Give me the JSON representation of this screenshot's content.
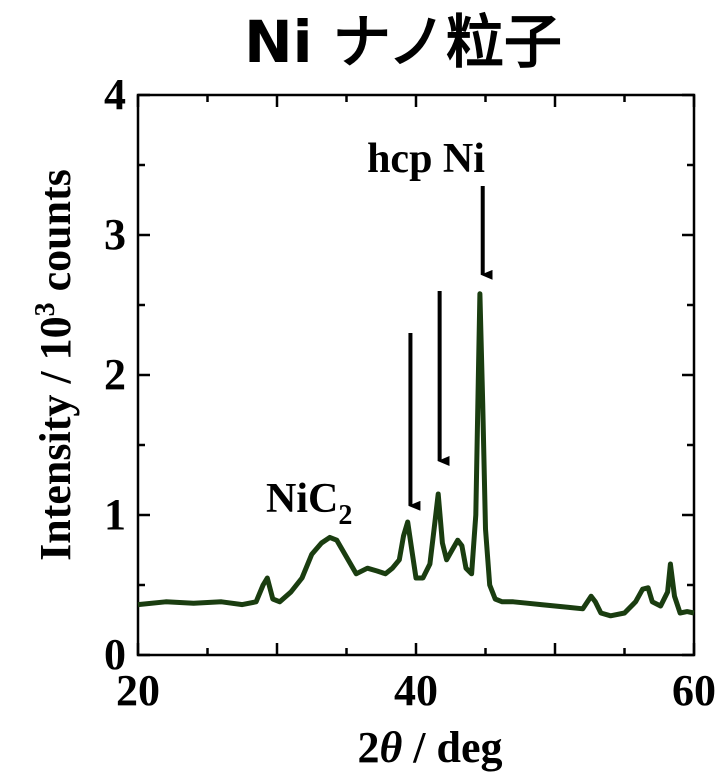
{
  "chart_data": {
    "type": "line",
    "title": "Ni ナノ粒子",
    "xlabel_prefix": "2",
    "xlabel_symbol": "θ",
    "xlabel_suffix": " / deg",
    "ylabel_main": "Intensity / 10",
    "ylabel_sup": "3",
    "ylabel_tail": " counts",
    "xlim": [
      20,
      60
    ],
    "ylim": [
      0,
      4
    ],
    "x_ticks": [
      20,
      40,
      60
    ],
    "x_tick_labels": [
      "20",
      "40",
      "60"
    ],
    "y_ticks": [
      0,
      1,
      2,
      3,
      4
    ],
    "y_tick_labels": [
      "0",
      "1",
      "2",
      "3",
      "4"
    ],
    "line_color": "#1a3d10",
    "series": [
      {
        "x": [
          20.0,
          22.0,
          24.0,
          26.0,
          27.5,
          28.5,
          29.0,
          29.3,
          29.7,
          30.2,
          31.0,
          31.8,
          32.5,
          33.2,
          33.8,
          34.3,
          35.0,
          35.7,
          36.5,
          37.2,
          37.8,
          38.3,
          38.8,
          39.1,
          39.4,
          39.7,
          40.0,
          40.5,
          41.0,
          41.3,
          41.6,
          41.9,
          42.2,
          42.6,
          43.0,
          43.3,
          43.6,
          44.0,
          44.3,
          44.6,
          44.8,
          45.0,
          45.3,
          45.7,
          46.2,
          47.0,
          48.0,
          49.0,
          50.0,
          51.0,
          52.0,
          52.6,
          52.9,
          53.3,
          54.0,
          55.0,
          55.8,
          56.3,
          56.7,
          57.0,
          57.6,
          58.1,
          58.3,
          58.6,
          59.0,
          59.5,
          60.0
        ],
        "y": [
          0.36,
          0.38,
          0.37,
          0.38,
          0.36,
          0.38,
          0.5,
          0.55,
          0.4,
          0.38,
          0.45,
          0.55,
          0.72,
          0.8,
          0.84,
          0.82,
          0.7,
          0.58,
          0.62,
          0.6,
          0.58,
          0.62,
          0.68,
          0.85,
          0.95,
          0.75,
          0.55,
          0.55,
          0.65,
          0.9,
          1.15,
          0.8,
          0.68,
          0.75,
          0.82,
          0.78,
          0.62,
          0.58,
          1.0,
          2.58,
          1.8,
          0.9,
          0.5,
          0.4,
          0.38,
          0.38,
          0.37,
          0.36,
          0.35,
          0.34,
          0.33,
          0.42,
          0.38,
          0.3,
          0.28,
          0.3,
          0.38,
          0.47,
          0.48,
          0.38,
          0.35,
          0.45,
          0.65,
          0.42,
          0.3,
          0.31,
          0.3
        ]
      }
    ],
    "annotations": [
      {
        "text": "hcp Ni"
      },
      {
        "text_main": "NiC",
        "text_sub": "2"
      }
    ],
    "arrows": [
      {
        "x": 39.6,
        "y_from": 2.3,
        "y_to": 0.98
      },
      {
        "x": 41.7,
        "y_from": 2.6,
        "y_to": 1.3
      },
      {
        "x": 44.8,
        "y_from": 3.35,
        "y_to": 2.63
      }
    ]
  }
}
